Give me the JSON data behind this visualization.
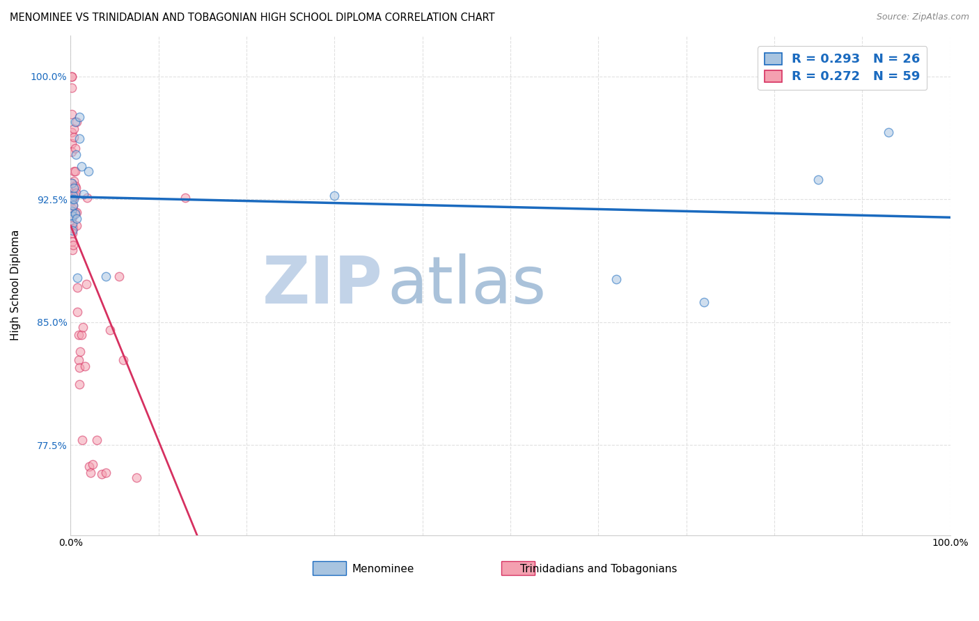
{
  "title": "MENOMINEE VS TRINIDADIAN AND TOBAGONIAN HIGH SCHOOL DIPLOMA CORRELATION CHART",
  "source": "Source: ZipAtlas.com",
  "ylabel": "High School Diploma",
  "xmin": 0.0,
  "xmax": 1.0,
  "ymin": 0.72,
  "ymax": 1.025,
  "yticks": [
    0.775,
    0.85,
    0.925,
    1.0
  ],
  "ytick_labels": [
    "77.5%",
    "85.0%",
    "92.5%",
    "100.0%"
  ],
  "xticks": [
    0.0,
    0.1,
    0.2,
    0.3,
    0.4,
    0.5,
    0.6,
    0.7,
    0.8,
    0.9,
    1.0
  ],
  "xtick_labels": [
    "0.0%",
    "",
    "",
    "",
    "",
    "",
    "",
    "",
    "",
    "",
    "100.0%"
  ],
  "menominee_color": "#a8c4e0",
  "trinidadian_color": "#f4a0b0",
  "line_menominee_color": "#1a6abf",
  "line_trinidadian_color": "#d63060",
  "R_menominee": 0.293,
  "N_menominee": 26,
  "R_trinidadian": 0.272,
  "N_trinidadian": 59,
  "menominee_x": [
    0.001,
    0.001,
    0.001,
    0.002,
    0.002,
    0.002,
    0.003,
    0.003,
    0.004,
    0.004,
    0.005,
    0.005,
    0.006,
    0.007,
    0.008,
    0.01,
    0.01,
    0.012,
    0.015,
    0.02,
    0.04,
    0.3,
    0.62,
    0.72,
    0.85,
    0.93
  ],
  "menominee_y": [
    0.935,
    0.925,
    0.918,
    0.915,
    0.91,
    0.906,
    0.927,
    0.921,
    0.932,
    0.925,
    0.972,
    0.916,
    0.952,
    0.913,
    0.877,
    0.975,
    0.962,
    0.945,
    0.928,
    0.942,
    0.878,
    0.927,
    0.876,
    0.862,
    0.937,
    0.966
  ],
  "trinidadian_x": [
    0.001,
    0.001,
    0.001,
    0.001,
    0.001,
    0.001,
    0.001,
    0.001,
    0.001,
    0.001,
    0.002,
    0.002,
    0.002,
    0.002,
    0.002,
    0.002,
    0.003,
    0.003,
    0.003,
    0.003,
    0.003,
    0.004,
    0.004,
    0.004,
    0.004,
    0.005,
    0.005,
    0.005,
    0.005,
    0.005,
    0.006,
    0.006,
    0.007,
    0.007,
    0.007,
    0.008,
    0.008,
    0.009,
    0.009,
    0.01,
    0.01,
    0.011,
    0.012,
    0.013,
    0.014,
    0.016,
    0.018,
    0.019,
    0.021,
    0.023,
    0.025,
    0.03,
    0.035,
    0.04,
    0.045,
    0.055,
    0.06,
    0.075,
    0.13
  ],
  "trinidadian_y": [
    1.0,
    1.0,
    0.993,
    0.977,
    0.966,
    0.959,
    0.954,
    0.935,
    0.929,
    0.924,
    0.919,
    0.914,
    0.909,
    0.904,
    0.899,
    0.894,
    0.932,
    0.926,
    0.921,
    0.907,
    0.897,
    0.968,
    0.963,
    0.942,
    0.936,
    0.933,
    0.927,
    0.917,
    0.956,
    0.942,
    0.932,
    0.929,
    0.972,
    0.917,
    0.909,
    0.871,
    0.856,
    0.842,
    0.827,
    0.822,
    0.812,
    0.832,
    0.842,
    0.778,
    0.847,
    0.823,
    0.873,
    0.926,
    0.762,
    0.758,
    0.763,
    0.778,
    0.757,
    0.758,
    0.845,
    0.878,
    0.827,
    0.755,
    0.926
  ],
  "background_color": "#ffffff",
  "grid_color": "#e0e0e0",
  "watermark_zip": "ZIP",
  "watermark_atlas": "atlas",
  "watermark_color_zip": "#b8cce4",
  "watermark_color_atlas": "#9bb8d4",
  "scatter_size": 80,
  "scatter_alpha": 0.55,
  "scatter_linewidth": 1.0,
  "tri_line_end_x": 0.38,
  "tri_line_dashed_end_x": 0.52
}
